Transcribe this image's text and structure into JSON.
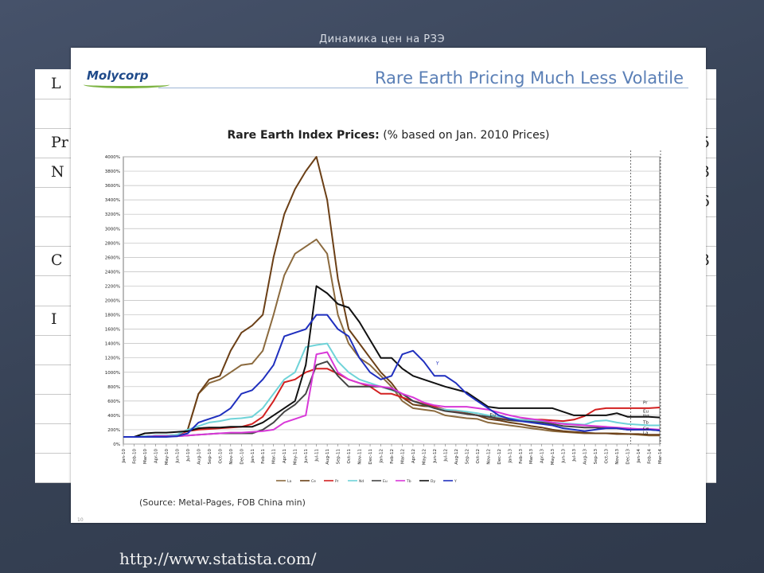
{
  "slide": {
    "title": "Динамика цен на РЗЭ",
    "url": "http://www.statista.com/"
  },
  "bg_table": {
    "rows": [
      {
        "left": "L",
        "right": ""
      },
      {
        "left": "",
        "right": ""
      },
      {
        "left": "Pr",
        "right": "5"
      },
      {
        "left": "N",
        "right": "3"
      },
      {
        "left": "",
        "right": "6"
      },
      {
        "left": "",
        "right": ""
      },
      {
        "left": "C",
        "right": "3"
      },
      {
        "left": "",
        "right": ""
      },
      {
        "left": "I",
        "right": ""
      },
      {
        "left": "",
        "right": ""
      },
      {
        "left": "",
        "right": ""
      },
      {
        "left": "",
        "right": ""
      },
      {
        "left": "",
        "right": ""
      },
      {
        "left": "",
        "right": ""
      }
    ]
  },
  "header": {
    "logo": "Molycorp",
    "title": "Rare Earth Pricing Much Less Volatile"
  },
  "chart_data": {
    "type": "line",
    "title_bold": "Rare Earth Index Prices:",
    "title_rest": " (% based on Jan. 2010 Prices)",
    "source": "(Source: Metal-Pages, FOB China min)",
    "page_number": "10",
    "ylim": [
      0,
      4000
    ],
    "yticks": [
      "0%",
      "200%",
      "400%",
      "600%",
      "800%",
      "1000%",
      "1200%",
      "1400%",
      "1600%",
      "1800%",
      "2000%",
      "2200%",
      "2400%",
      "2600%",
      "2800%",
      "3000%",
      "3200%",
      "3400%",
      "3600%",
      "3800%",
      "4000%"
    ],
    "x": [
      "Jan-10",
      "Feb-10",
      "Mar-10",
      "Apr-10",
      "May-10",
      "Jun-10",
      "Jul-10",
      "Aug-10",
      "Sep-10",
      "Oct-10",
      "Nov-10",
      "Dec-10",
      "Jan-11",
      "Feb-11",
      "Mar-11",
      "Apr-11",
      "May-11",
      "Jun-11",
      "Jul-11",
      "Aug-11",
      "Sep-11",
      "Oct-11",
      "Nov-11",
      "Dec-11",
      "Jan-12",
      "Feb-12",
      "Mar-12",
      "Apr-12",
      "May-12",
      "Jun-12",
      "Jul-12",
      "Aug-12",
      "Sep-12",
      "Oct-12",
      "Nov-12",
      "Dec-12",
      "Jan-13",
      "Feb-13",
      "Mar-13",
      "Apr-13",
      "May-13",
      "Jun-13",
      "Jul-13",
      "Aug-13",
      "Sep-13",
      "Oct-13",
      "Nov-13",
      "Dec-13",
      "Jan-14",
      "Feb-14",
      "Mar-14"
    ],
    "grid": true,
    "legend_position": "bottom",
    "end_labels": [
      "Pr",
      "Eu",
      "Nd",
      "Tb",
      "Ce",
      "La"
    ],
    "inline_labels": [
      "Y",
      "Eu"
    ],
    "series": [
      {
        "name": "La",
        "color": "#8b6a3e",
        "values": [
          100,
          100,
          105,
          110,
          115,
          120,
          200,
          700,
          850,
          900,
          1000,
          1100,
          1120,
          1300,
          1800,
          2350,
          2650,
          2750,
          2850,
          2650,
          1800,
          1400,
          1200,
          1100,
          950,
          800,
          600,
          500,
          480,
          460,
          400,
          380,
          360,
          350,
          300,
          280,
          260,
          240,
          220,
          200,
          180,
          170,
          160,
          150,
          150,
          150,
          150,
          140,
          130,
          120,
          120
        ]
      },
      {
        "name": "Ce",
        "color": "#6b3f16",
        "values": [
          100,
          100,
          100,
          110,
          115,
          120,
          200,
          700,
          900,
          950,
          1300,
          1550,
          1650,
          1800,
          2600,
          3200,
          3550,
          3800,
          4000,
          3400,
          2300,
          1600,
          1400,
          1200,
          1000,
          850,
          650,
          550,
          530,
          520,
          480,
          450,
          430,
          400,
          350,
          330,
          300,
          280,
          250,
          230,
          200,
          180,
          170,
          160,
          150,
          150,
          140,
          140,
          140,
          130,
          130
        ]
      },
      {
        "name": "Pr",
        "color": "#d22020",
        "values": [
          100,
          100,
          110,
          120,
          120,
          130,
          180,
          200,
          210,
          220,
          230,
          240,
          280,
          380,
          600,
          860,
          900,
          1000,
          1050,
          1050,
          980,
          900,
          850,
          800,
          700,
          700,
          650,
          600,
          560,
          520,
          480,
          450,
          420,
          400,
          380,
          360,
          350,
          340,
          340,
          340,
          330,
          320,
          340,
          390,
          480,
          500,
          500,
          500,
          500,
          500,
          510
        ]
      },
      {
        "name": "Nd",
        "color": "#6fd3d8",
        "values": [
          100,
          100,
          110,
          120,
          120,
          130,
          200,
          250,
          300,
          320,
          350,
          360,
          380,
          500,
          700,
          900,
          1000,
          1350,
          1380,
          1400,
          1150,
          1000,
          900,
          850,
          800,
          750,
          700,
          600,
          550,
          500,
          480,
          470,
          450,
          430,
          400,
          380,
          360,
          340,
          330,
          320,
          300,
          290,
          280,
          270,
          320,
          330,
          300,
          280,
          270,
          260,
          260
        ]
      },
      {
        "name": "Eu",
        "color": "#444444",
        "values": [
          100,
          100,
          100,
          110,
          110,
          110,
          120,
          130,
          140,
          150,
          150,
          150,
          150,
          200,
          300,
          450,
          550,
          700,
          1100,
          1150,
          950,
          800,
          800,
          800,
          800,
          760,
          700,
          600,
          550,
          500,
          460,
          440,
          420,
          400,
          380,
          350,
          330,
          320,
          310,
          300,
          280,
          250,
          240,
          230,
          230,
          220,
          220,
          200,
          200,
          200,
          190
        ]
      },
      {
        "name": "Tb",
        "color": "#d838d8",
        "values": [
          100,
          100,
          100,
          110,
          110,
          110,
          120,
          130,
          140,
          150,
          160,
          160,
          170,
          180,
          200,
          300,
          350,
          400,
          1250,
          1280,
          1000,
          900,
          850,
          820,
          800,
          780,
          700,
          650,
          580,
          540,
          520,
          520,
          520,
          500,
          480,
          440,
          400,
          370,
          350,
          330,
          300,
          280,
          270,
          260,
          250,
          240,
          230,
          220,
          210,
          210,
          200
        ]
      },
      {
        "name": "Dy",
        "color": "#111111",
        "values": [
          100,
          100,
          150,
          160,
          160,
          170,
          180,
          220,
          230,
          230,
          240,
          240,
          240,
          300,
          400,
          500,
          600,
          1100,
          2200,
          2100,
          1950,
          1900,
          1700,
          1450,
          1200,
          1200,
          1050,
          950,
          900,
          850,
          800,
          760,
          720,
          620,
          520,
          500,
          500,
          500,
          500,
          500,
          500,
          450,
          400,
          400,
          400,
          400,
          430,
          380,
          380,
          380,
          370
        ]
      },
      {
        "name": "Y",
        "color": "#1f2fbe",
        "values": [
          100,
          100,
          100,
          100,
          100,
          110,
          150,
          300,
          350,
          400,
          500,
          700,
          750,
          900,
          1100,
          1500,
          1550,
          1600,
          1800,
          1800,
          1600,
          1500,
          1200,
          1000,
          900,
          950,
          1250,
          1300,
          1150,
          950,
          950,
          850,
          700,
          600,
          500,
          400,
          350,
          320,
          300,
          280,
          260,
          220,
          200,
          180,
          200,
          220,
          220,
          200,
          200,
          200,
          190
        ]
      }
    ]
  }
}
